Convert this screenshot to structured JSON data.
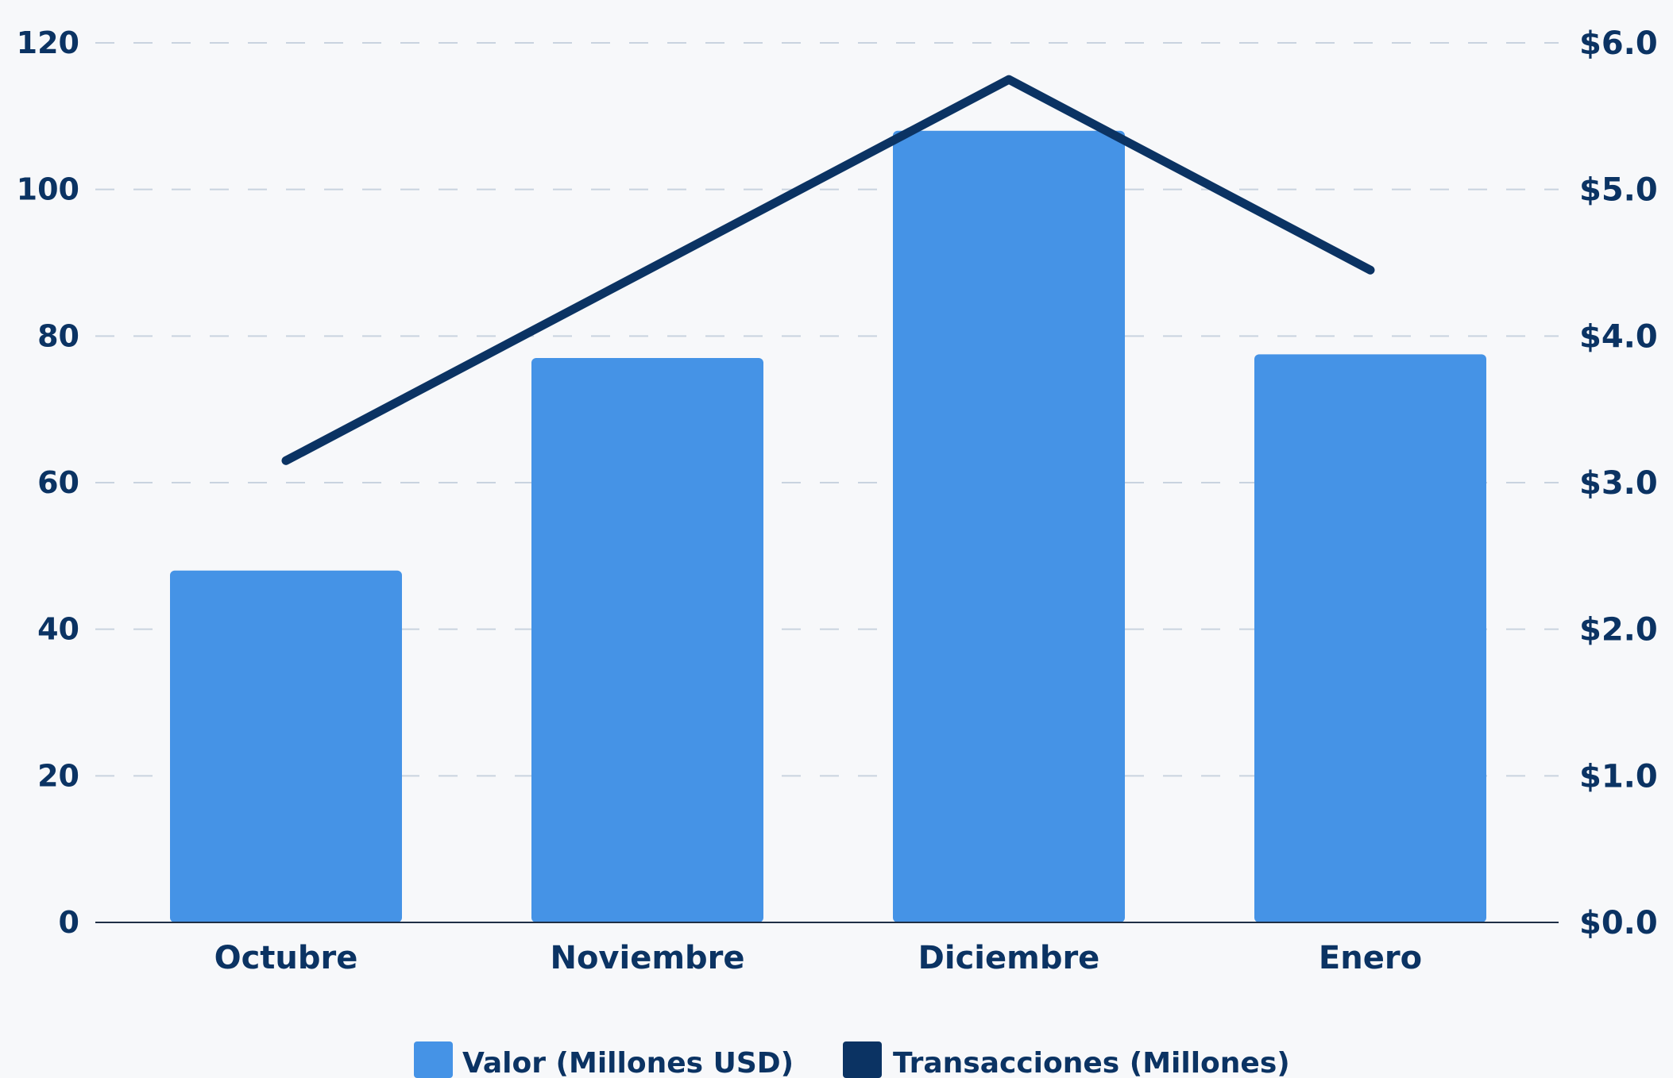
{
  "chart_data": {
    "type": "bar",
    "categories": [
      "Octubre",
      "Noviembre",
      "Diciembre",
      "Enero"
    ],
    "series": [
      {
        "name": "Valor (Millones USD)",
        "type": "bar",
        "axis": "left",
        "color": "#4593e6",
        "values": [
          48,
          77,
          108,
          77.5
        ]
      },
      {
        "name": "Transacciones (Millones)",
        "type": "line",
        "axis": "right",
        "color": "#0b3363",
        "values": [
          3.15,
          4.45,
          5.75,
          4.45
        ]
      }
    ],
    "ylim_left": [
      0,
      120
    ],
    "yticks_left": [
      "0",
      "20",
      "40",
      "60",
      "80",
      "100",
      "120"
    ],
    "ylim_right": [
      0,
      6
    ],
    "yticks_right": [
      "$0.0",
      "$1.0",
      "$2.0",
      "$3.0",
      "$4.0",
      "$5.0",
      "$6.0"
    ],
    "grid": "horizontal-dashed",
    "legend_position": "bottom-center"
  }
}
